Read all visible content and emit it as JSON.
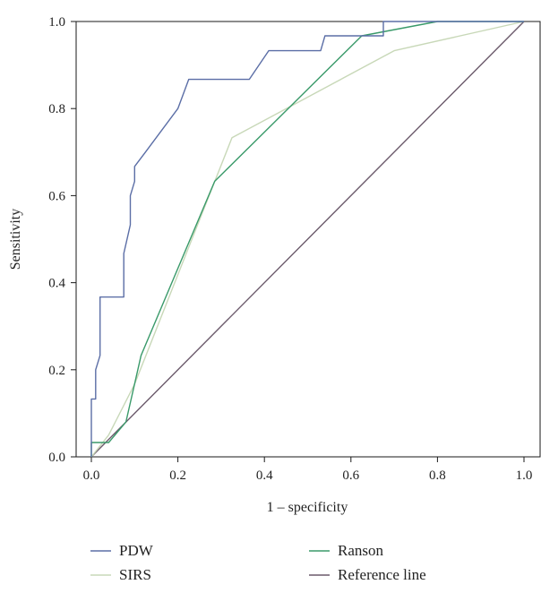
{
  "chart_data": {
    "type": "line",
    "title": "",
    "xlabel": "1 – specificity",
    "ylabel": "Sensitivity",
    "xlim": [
      0.0,
      1.0
    ],
    "ylim": [
      0.0,
      1.0
    ],
    "x_ticks": [
      "0.0",
      "0.2",
      "0.4",
      "0.6",
      "0.8",
      "1.0"
    ],
    "y_ticks": [
      "0.0",
      "0.2",
      "0.4",
      "0.6",
      "0.8",
      "1.0"
    ],
    "grid": false,
    "legend_position": "bottom",
    "series": [
      {
        "name": "PDW",
        "color": "#5b6ea6",
        "points": [
          [
            0.0,
            0.0
          ],
          [
            0.0,
            0.133
          ],
          [
            0.01,
            0.133
          ],
          [
            0.01,
            0.2
          ],
          [
            0.02,
            0.233
          ],
          [
            0.02,
            0.367
          ],
          [
            0.075,
            0.367
          ],
          [
            0.075,
            0.467
          ],
          [
            0.09,
            0.533
          ],
          [
            0.09,
            0.6
          ],
          [
            0.1,
            0.633
          ],
          [
            0.1,
            0.667
          ],
          [
            0.125,
            0.7
          ],
          [
            0.2,
            0.8
          ],
          [
            0.225,
            0.867
          ],
          [
            0.365,
            0.867
          ],
          [
            0.41,
            0.933
          ],
          [
            0.53,
            0.933
          ],
          [
            0.54,
            0.967
          ],
          [
            0.675,
            0.967
          ],
          [
            0.675,
            1.0
          ],
          [
            1.0,
            1.0
          ]
        ]
      },
      {
        "name": "Ranson",
        "color": "#3a9a6a",
        "points": [
          [
            0.0,
            0.0
          ],
          [
            0.0,
            0.033
          ],
          [
            0.04,
            0.033
          ],
          [
            0.08,
            0.08
          ],
          [
            0.115,
            0.233
          ],
          [
            0.285,
            0.633
          ],
          [
            0.625,
            0.967
          ],
          [
            0.8,
            1.0
          ],
          [
            1.0,
            1.0
          ]
        ]
      },
      {
        "name": "SIRS",
        "color": "#c8d8b8",
        "points": [
          [
            0.0,
            0.0
          ],
          [
            0.04,
            0.05
          ],
          [
            0.1,
            0.167
          ],
          [
            0.325,
            0.733
          ],
          [
            0.7,
            0.933
          ],
          [
            1.0,
            1.0
          ]
        ]
      },
      {
        "name": "Reference line",
        "color": "#6b5a6b",
        "points": [
          [
            0.0,
            0.0
          ],
          [
            1.0,
            1.0
          ]
        ]
      }
    ]
  }
}
